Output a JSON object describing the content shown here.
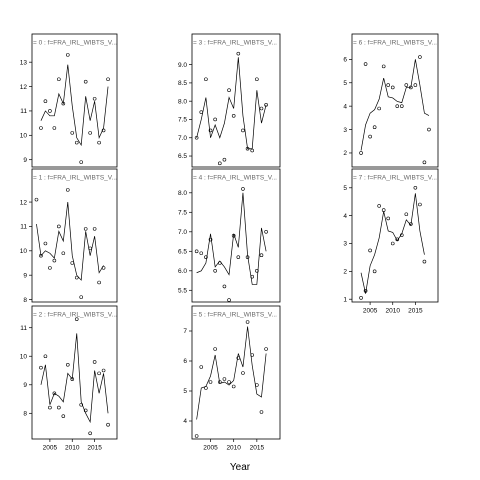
{
  "chart_data": {
    "type": "scatter",
    "xlabel": "Year",
    "xlim": [
      2001,
      2020
    ],
    "x_ticks": [
      2005,
      2010,
      2015
    ],
    "series_style": "open-circle points with fitted line",
    "panels": [
      {
        "strip": "= 0 : f=FRA_IRL_WIBTS_V...",
        "ylim": [
          8.7,
          13.5
        ],
        "y_ticks": [
          9,
          10,
          11,
          12,
          13
        ],
        "points": [
          [
            2003,
            10.3
          ],
          [
            2004,
            11.4
          ],
          [
            2005,
            11.0
          ],
          [
            2006,
            10.3
          ],
          [
            2007,
            12.3
          ],
          [
            2008,
            11.3
          ],
          [
            2009,
            13.3
          ],
          [
            2010,
            10.1
          ],
          [
            2011,
            9.7
          ],
          [
            2012,
            8.9
          ],
          [
            2013,
            12.2
          ],
          [
            2014,
            10.1
          ],
          [
            2015,
            11.5
          ],
          [
            2016,
            9.7
          ],
          [
            2017,
            10.2
          ],
          [
            2018,
            12.3
          ]
        ],
        "line": [
          [
            2003,
            10.6
          ],
          [
            2004,
            11.0
          ],
          [
            2005,
            10.8
          ],
          [
            2006,
            10.8
          ],
          [
            2007,
            11.7
          ],
          [
            2008,
            11.3
          ],
          [
            2009,
            12.9
          ],
          [
            2010,
            11.2
          ],
          [
            2011,
            9.9
          ],
          [
            2012,
            9.6
          ],
          [
            2013,
            11.6
          ],
          [
            2014,
            10.6
          ],
          [
            2015,
            11.4
          ],
          [
            2016,
            9.9
          ],
          [
            2017,
            10.3
          ],
          [
            2018,
            12.0
          ]
        ]
      },
      {
        "strip": "= 1 : f=FRA_IRL_WIBTS_V...",
        "ylim": [
          7.9,
          12.7
        ],
        "y_ticks": [
          8,
          9,
          10,
          11,
          12
        ],
        "points": [
          [
            2002,
            12.1
          ],
          [
            2003,
            9.8
          ],
          [
            2004,
            10.3
          ],
          [
            2005,
            9.3
          ],
          [
            2006,
            9.6
          ],
          [
            2007,
            11.0
          ],
          [
            2008,
            9.9
          ],
          [
            2009,
            12.5
          ],
          [
            2010,
            9.5
          ],
          [
            2011,
            8.9
          ],
          [
            2012,
            8.1
          ],
          [
            2013,
            10.9
          ],
          [
            2014,
            10.1
          ],
          [
            2015,
            10.9
          ],
          [
            2016,
            8.7
          ],
          [
            2017,
            9.3
          ]
        ],
        "line": [
          [
            2002,
            11.1
          ],
          [
            2003,
            9.8
          ],
          [
            2004,
            10.0
          ],
          [
            2005,
            9.9
          ],
          [
            2006,
            9.7
          ],
          [
            2007,
            10.8
          ],
          [
            2008,
            10.4
          ],
          [
            2009,
            12.0
          ],
          [
            2010,
            9.8
          ],
          [
            2011,
            9.0
          ],
          [
            2012,
            8.8
          ],
          [
            2013,
            10.8
          ],
          [
            2014,
            9.8
          ],
          [
            2015,
            10.6
          ],
          [
            2016,
            9.1
          ],
          [
            2017,
            9.4
          ]
        ]
      },
      {
        "strip": "= 2 : f=FRA_IRL_WIBTS_V...",
        "ylim": [
          7.1,
          11.2
        ],
        "y_ticks": [
          8,
          9,
          10,
          11
        ],
        "points": [
          [
            2003,
            9.6
          ],
          [
            2004,
            10.0
          ],
          [
            2005,
            8.2
          ],
          [
            2006,
            8.7
          ],
          [
            2007,
            8.2
          ],
          [
            2008,
            7.9
          ],
          [
            2009,
            9.7
          ],
          [
            2010,
            9.2
          ],
          [
            2011,
            11.3
          ],
          [
            2012,
            8.3
          ],
          [
            2013,
            8.1
          ],
          [
            2014,
            7.3
          ],
          [
            2015,
            9.8
          ],
          [
            2016,
            9.4
          ],
          [
            2017,
            9.5
          ],
          [
            2018,
            7.6
          ]
        ],
        "line": [
          [
            2003,
            9.0
          ],
          [
            2004,
            9.7
          ],
          [
            2005,
            8.3
          ],
          [
            2006,
            8.7
          ],
          [
            2007,
            8.6
          ],
          [
            2008,
            8.4
          ],
          [
            2009,
            9.4
          ],
          [
            2010,
            9.2
          ],
          [
            2011,
            10.8
          ],
          [
            2012,
            8.4
          ],
          [
            2013,
            8.0
          ],
          [
            2014,
            7.7
          ],
          [
            2015,
            9.5
          ],
          [
            2016,
            8.7
          ],
          [
            2017,
            9.4
          ],
          [
            2018,
            8.0
          ]
        ]
      },
      {
        "strip": "= 3 : f=FRA_IRL_WIBTS_V...",
        "ylim": [
          6.2,
          9.4
        ],
        "y_ticks": [
          6.5,
          7.0,
          7.5,
          8.0,
          8.5,
          9.0
        ],
        "points": [
          [
            2002,
            7.0
          ],
          [
            2003,
            7.7
          ],
          [
            2004,
            8.6
          ],
          [
            2005,
            7.2
          ],
          [
            2006,
            7.5
          ],
          [
            2007,
            6.3
          ],
          [
            2008,
            6.4
          ],
          [
            2009,
            8.3
          ],
          [
            2010,
            7.6
          ],
          [
            2011,
            9.3
          ],
          [
            2012,
            7.2
          ],
          [
            2013,
            6.7
          ],
          [
            2014,
            6.65
          ],
          [
            2015,
            8.6
          ],
          [
            2016,
            7.8
          ],
          [
            2017,
            7.9
          ]
        ],
        "line": [
          [
            2002,
            7.0
          ],
          [
            2003,
            7.5
          ],
          [
            2004,
            8.1
          ],
          [
            2005,
            7.0
          ],
          [
            2006,
            7.35
          ],
          [
            2007,
            7.0
          ],
          [
            2008,
            7.4
          ],
          [
            2009,
            8.1
          ],
          [
            2010,
            7.8
          ],
          [
            2011,
            9.2
          ],
          [
            2012,
            7.6
          ],
          [
            2013,
            6.7
          ],
          [
            2014,
            6.7
          ],
          [
            2015,
            8.3
          ],
          [
            2016,
            7.4
          ],
          [
            2017,
            7.9
          ]
        ]
      },
      {
        "strip": "= 4 : f=FRA_IRL_WIBTS_V...",
        "ylim": [
          5.2,
          8.2
        ],
        "y_ticks": [
          5.5,
          6.0,
          6.5,
          7.0,
          7.5,
          8.0
        ],
        "points": [
          [
            2002,
            6.5
          ],
          [
            2003,
            6.45
          ],
          [
            2004,
            6.35
          ],
          [
            2005,
            6.8
          ],
          [
            2006,
            6.0
          ],
          [
            2007,
            6.2
          ],
          [
            2008,
            5.6
          ],
          [
            2009,
            5.25
          ],
          [
            2010,
            6.9
          ],
          [
            2011,
            6.35
          ],
          [
            2012,
            8.1
          ],
          [
            2013,
            6.35
          ],
          [
            2014,
            5.85
          ],
          [
            2015,
            6.0
          ],
          [
            2016,
            6.4
          ],
          [
            2017,
            7.0
          ]
        ],
        "line": [
          [
            2002,
            5.95
          ],
          [
            2003,
            6.0
          ],
          [
            2004,
            6.2
          ],
          [
            2005,
            6.95
          ],
          [
            2006,
            6.1
          ],
          [
            2007,
            6.25
          ],
          [
            2008,
            6.1
          ],
          [
            2009,
            5.9
          ],
          [
            2010,
            6.95
          ],
          [
            2011,
            6.6
          ],
          [
            2012,
            8.0
          ],
          [
            2013,
            6.4
          ],
          [
            2014,
            5.65
          ],
          [
            2015,
            5.65
          ],
          [
            2016,
            7.1
          ],
          [
            2017,
            6.5
          ]
        ]
      },
      {
        "strip": "= 5 : f=FRA_IRL_WIBTS_V...",
        "ylim": [
          3.4,
          7.3
        ],
        "y_ticks": [
          4,
          5,
          6,
          7
        ],
        "points": [
          [
            2002,
            3.5
          ],
          [
            2003,
            5.8
          ],
          [
            2004,
            5.1
          ],
          [
            2005,
            5.3
          ],
          [
            2006,
            6.4
          ],
          [
            2007,
            5.3
          ],
          [
            2008,
            5.4
          ],
          [
            2009,
            5.3
          ],
          [
            2010,
            5.15
          ],
          [
            2011,
            6.1
          ],
          [
            2012,
            5.6
          ],
          [
            2013,
            7.3
          ],
          [
            2014,
            6.2
          ],
          [
            2015,
            5.2
          ],
          [
            2016,
            4.3
          ],
          [
            2017,
            6.4
          ]
        ],
        "line": [
          [
            2002,
            4.05
          ],
          [
            2003,
            5.1
          ],
          [
            2004,
            5.15
          ],
          [
            2005,
            5.5
          ],
          [
            2006,
            6.2
          ],
          [
            2007,
            5.25
          ],
          [
            2008,
            5.3
          ],
          [
            2009,
            5.2
          ],
          [
            2010,
            5.35
          ],
          [
            2011,
            6.25
          ],
          [
            2012,
            5.8
          ],
          [
            2013,
            7.15
          ],
          [
            2014,
            5.85
          ],
          [
            2015,
            4.9
          ],
          [
            2016,
            4.8
          ],
          [
            2017,
            6.25
          ]
        ]
      },
      {
        "strip": "= 6 : f=FRA_IRL_WIBTS_V...",
        "ylim": [
          1.4,
          6.4
        ],
        "y_ticks": [
          2,
          3,
          4,
          5,
          6
        ],
        "points": [
          [
            2003,
            2.0
          ],
          [
            2004,
            5.8
          ],
          [
            2005,
            2.7
          ],
          [
            2006,
            3.1
          ],
          [
            2007,
            3.9
          ],
          [
            2008,
            5.7
          ],
          [
            2009,
            4.9
          ],
          [
            2010,
            4.8
          ],
          [
            2011,
            4.0
          ],
          [
            2012,
            4.0
          ],
          [
            2013,
            4.9
          ],
          [
            2014,
            4.8
          ],
          [
            2015,
            4.9
          ],
          [
            2016,
            6.1
          ],
          [
            2017,
            1.6
          ],
          [
            2018,
            3.0
          ]
        ],
        "line": [
          [
            2003,
            2.1
          ],
          [
            2004,
            3.2
          ],
          [
            2005,
            3.7
          ],
          [
            2006,
            3.85
          ],
          [
            2007,
            4.3
          ],
          [
            2008,
            5.2
          ],
          [
            2009,
            4.4
          ],
          [
            2010,
            4.35
          ],
          [
            2011,
            4.2
          ],
          [
            2012,
            4.15
          ],
          [
            2013,
            4.8
          ],
          [
            2014,
            4.8
          ],
          [
            2015,
            6.0
          ],
          [
            2016,
            4.9
          ],
          [
            2017,
            3.7
          ],
          [
            2018,
            3.6
          ]
        ]
      },
      {
        "strip": "= 7 : f=FRA_IRL_WIBTS_V...",
        "ylim": [
          0.9,
          5.1
        ],
        "y_ticks": [
          1,
          2,
          3,
          4,
          5
        ],
        "points": [
          [
            2003,
            1.05
          ],
          [
            2004,
            1.3
          ],
          [
            2005,
            2.75
          ],
          [
            2006,
            2.0
          ],
          [
            2007,
            4.35
          ],
          [
            2008,
            4.2
          ],
          [
            2009,
            3.9
          ],
          [
            2010,
            3.0
          ],
          [
            2011,
            3.15
          ],
          [
            2012,
            3.3
          ],
          [
            2013,
            4.05
          ],
          [
            2014,
            3.7
          ],
          [
            2015,
            5.0
          ],
          [
            2016,
            4.4
          ],
          [
            2017,
            2.35
          ]
        ],
        "line": [
          [
            2003,
            1.95
          ],
          [
            2004,
            1.2
          ],
          [
            2005,
            2.2
          ],
          [
            2006,
            2.6
          ],
          [
            2007,
            3.2
          ],
          [
            2008,
            4.15
          ],
          [
            2009,
            3.45
          ],
          [
            2010,
            3.4
          ],
          [
            2011,
            3.1
          ],
          [
            2012,
            3.35
          ],
          [
            2013,
            3.85
          ],
          [
            2014,
            3.65
          ],
          [
            2015,
            4.8
          ],
          [
            2016,
            3.45
          ],
          [
            2017,
            2.6
          ]
        ]
      }
    ]
  }
}
